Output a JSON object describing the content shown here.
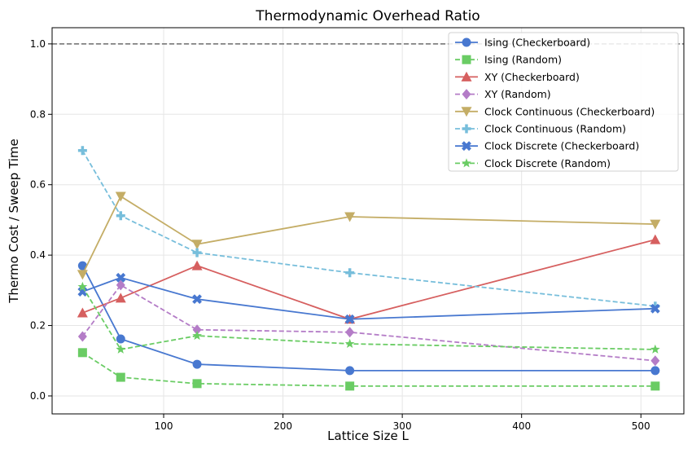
{
  "chart_data": {
    "type": "line",
    "title": "Thermodynamic Overhead Ratio",
    "xlabel": "Lattice Size L",
    "ylabel": "Thermo Cost / Sweep Time",
    "xlim": [
      6.5,
      536
    ],
    "ylim": [
      -0.051,
      1.046
    ],
    "xticks": [
      100,
      200,
      300,
      400,
      500
    ],
    "yticks": [
      0.0,
      0.2,
      0.4,
      0.6,
      0.8,
      1.0
    ],
    "grid": true,
    "legend_position": "top-right",
    "reference_line": {
      "y": 1.0,
      "style": "dashed",
      "color": "#808080"
    },
    "x": [
      32,
      64,
      128,
      256,
      512
    ],
    "series": [
      {
        "name": "Ising (Checkerboard)",
        "values": [
          0.37,
          0.162,
          0.09,
          0.072,
          0.072
        ],
        "color": "#4878d0",
        "dash": false,
        "marker": "circle"
      },
      {
        "name": "Ising (Random)",
        "values": [
          0.123,
          0.053,
          0.035,
          0.028,
          0.028
        ],
        "color": "#6acc64",
        "dash": true,
        "marker": "square"
      },
      {
        "name": "XY (Checkerboard)",
        "values": [
          0.236,
          0.278,
          0.37,
          0.218,
          0.444
        ],
        "color": "#d65f5f",
        "dash": false,
        "marker": "triangle-up"
      },
      {
        "name": "XY (Random)",
        "values": [
          0.169,
          0.315,
          0.188,
          0.181,
          0.1
        ],
        "color": "#b47cc7",
        "dash": true,
        "marker": "diamond"
      },
      {
        "name": "Clock Continuous (Checkerboard)",
        "values": [
          0.345,
          0.567,
          0.431,
          0.509,
          0.488
        ],
        "color": "#c4ad66",
        "dash": false,
        "marker": "triangle-down"
      },
      {
        "name": "Clock Continuous (Random)",
        "values": [
          0.697,
          0.512,
          0.407,
          0.35,
          0.255
        ],
        "color": "#77bedb",
        "dash": true,
        "marker": "plus"
      },
      {
        "name": "Clock Discrete (Checkerboard)",
        "values": [
          0.296,
          0.336,
          0.275,
          0.218,
          0.248
        ],
        "color": "#4878d0",
        "dash": false,
        "marker": "x"
      },
      {
        "name": "Clock Discrete (Random)",
        "values": [
          0.31,
          0.132,
          0.171,
          0.148,
          0.132
        ],
        "color": "#6acc64",
        "dash": true,
        "marker": "star"
      }
    ]
  }
}
